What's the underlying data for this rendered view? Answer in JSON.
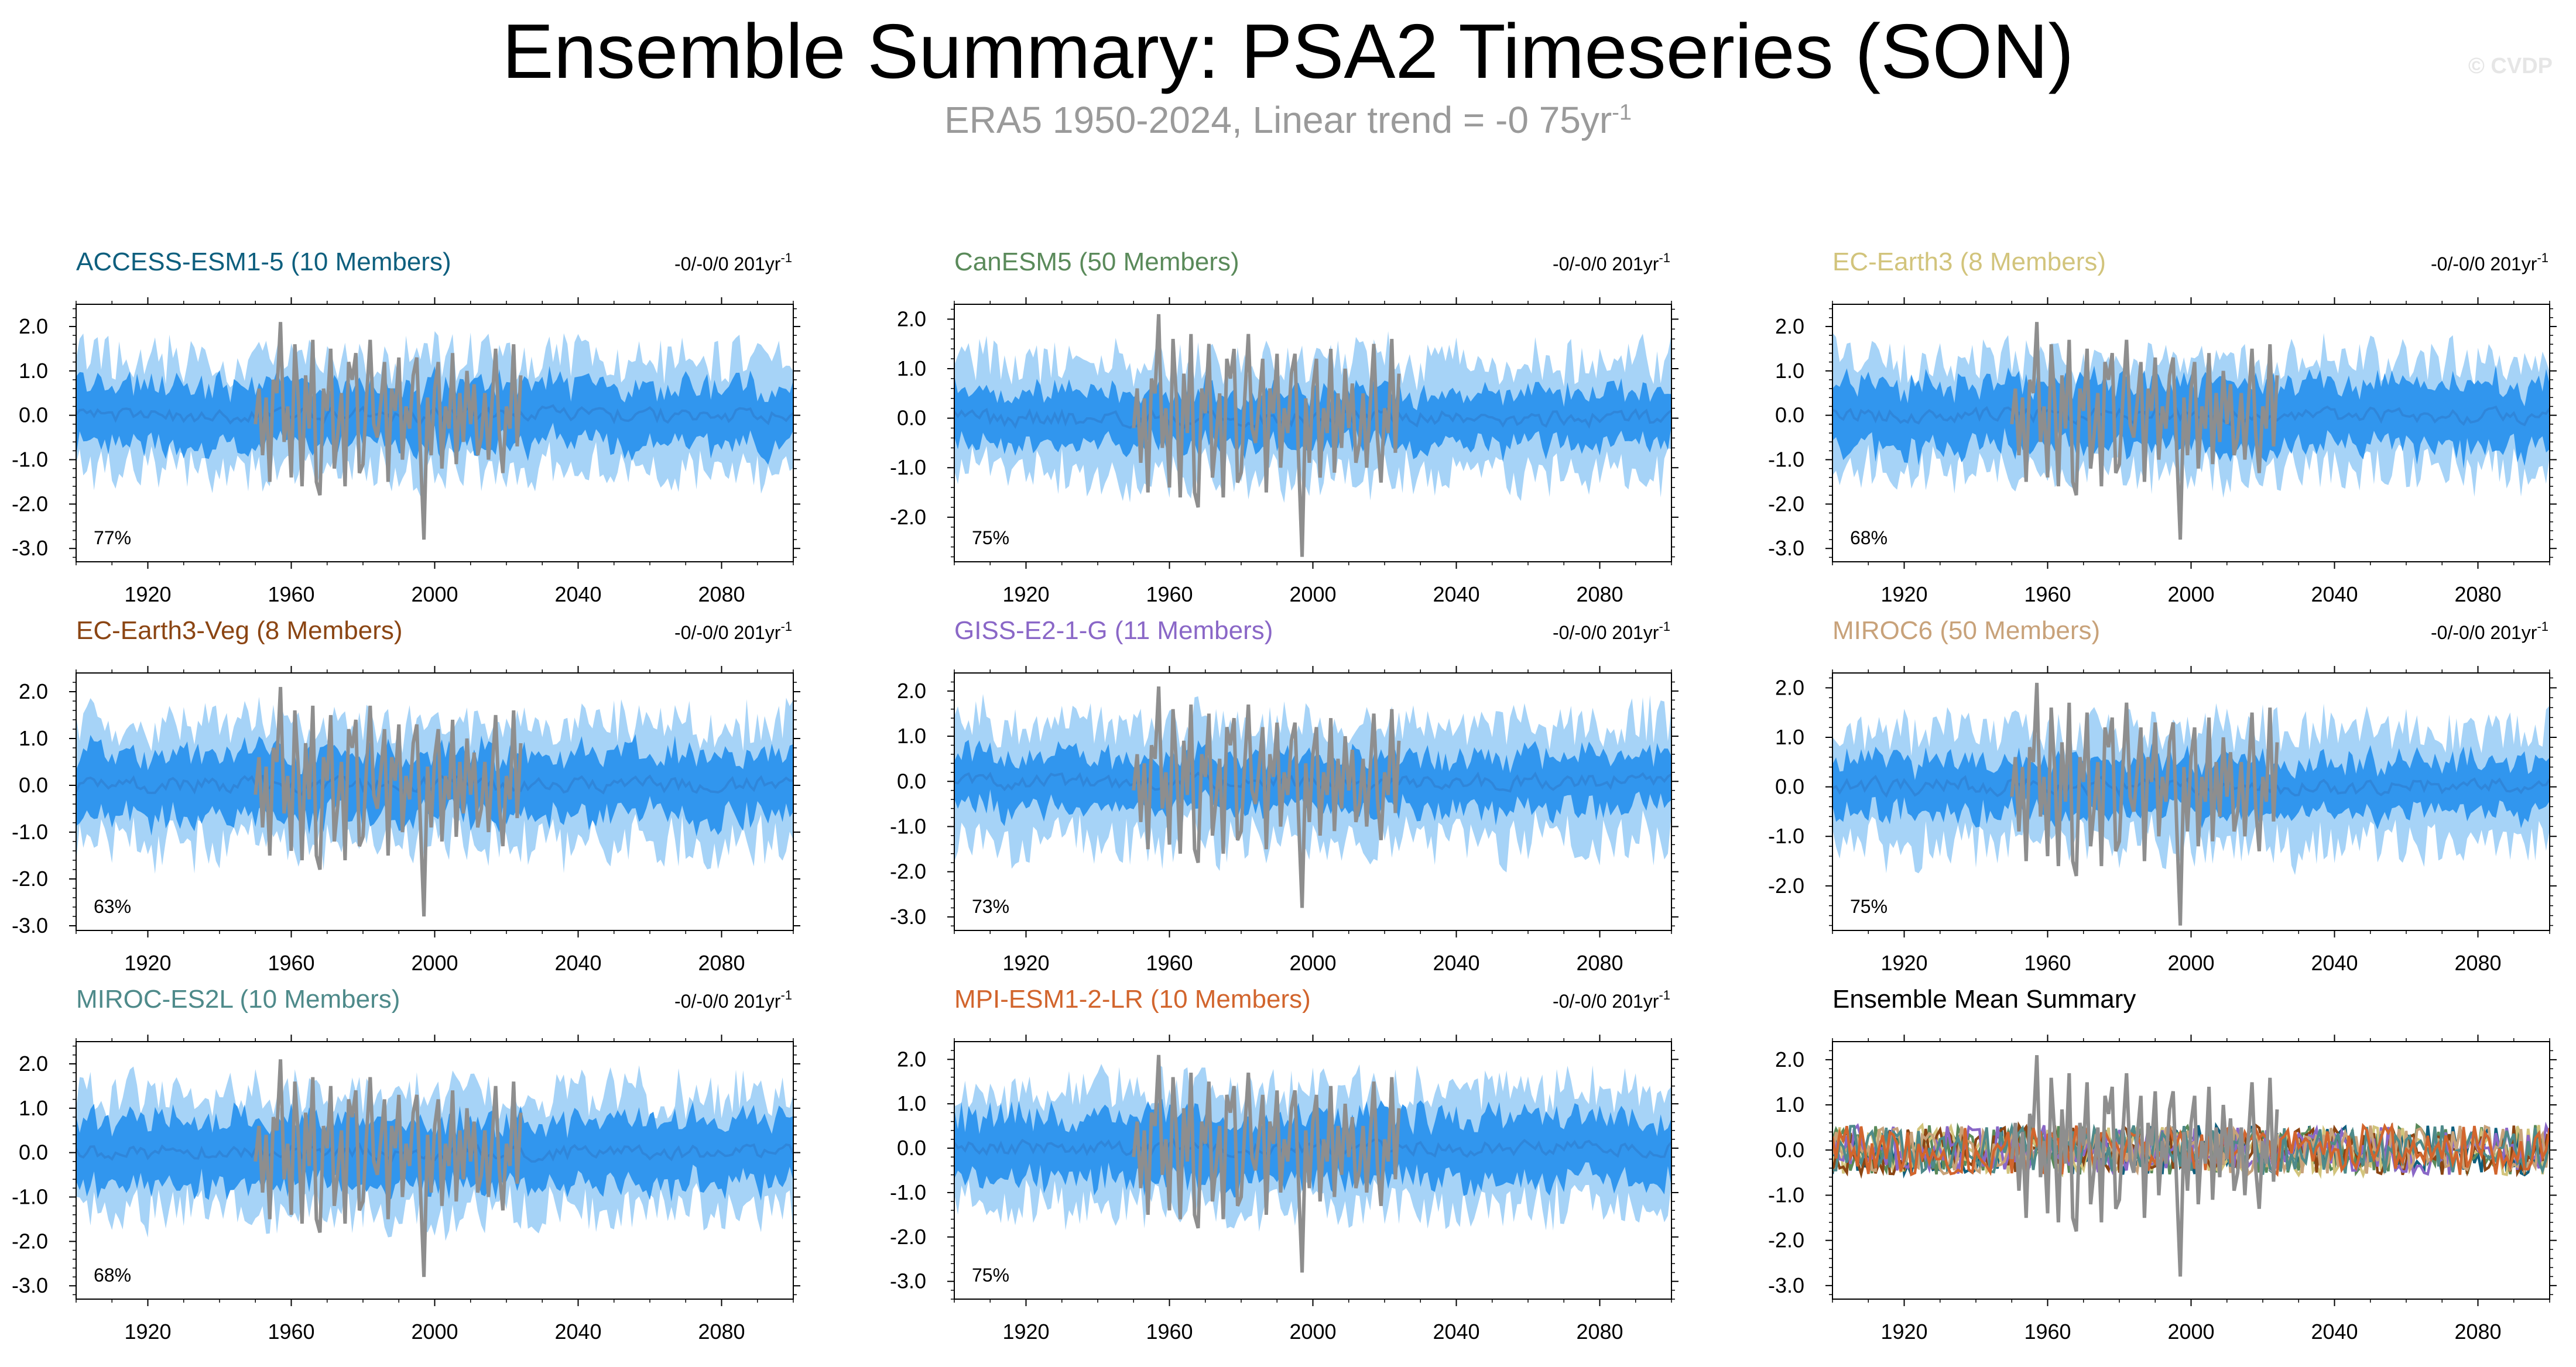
{
  "figure": {
    "title": "Ensemble Summary: PSA2 Timeseries (SON)",
    "subtitle_prefix": "ERA5 1950-2024, Linear trend = -0 75yr",
    "subtitle_sup": "-1",
    "watermark": "© CVDP"
  },
  "colors": {
    "outer_band": "#a6d3f7",
    "inner_band": "#3196ee",
    "mean_line": "#2f86da",
    "observations": "#8e8e8e"
  },
  "chart_data": [
    {
      "type": "area",
      "title": "ACCESS-ESM1-5 (10 Members)",
      "title_color": "#0e5f7e",
      "trend_label": "-0/-0/0 201yr",
      "trend_sup": "-1",
      "percent_label": "77%",
      "ylim": [
        -3.3,
        2.5
      ],
      "yticks": [
        2.0,
        1.0,
        0.0,
        -1.0,
        -2.0,
        -3.0
      ],
      "ytick_labels": [
        "2.0",
        "1.0",
        "0.0",
        "-1.0",
        "-2.0",
        "-3.0"
      ],
      "xlim": [
        1900,
        2100
      ],
      "xticks": [
        1920,
        1960,
        2000,
        2040,
        2080
      ],
      "xtick_labels": [
        "1920",
        "1960",
        "2000",
        "2040",
        "2080"
      ],
      "outer_amp": 1.35,
      "inner_amp": 0.7,
      "seed": 11
    },
    {
      "type": "area",
      "title": "CanESM5 (50 Members)",
      "title_color": "#5a8a5a",
      "trend_label": "-0/-0/0 201yr",
      "trend_sup": "-1",
      "percent_label": "75%",
      "ylim": [
        -2.9,
        2.3
      ],
      "yticks": [
        2.0,
        1.0,
        0.0,
        -1.0,
        -2.0
      ],
      "ytick_labels": [
        "2.0",
        "1.0",
        "0.0",
        "-1.0",
        "-2.0"
      ],
      "xlim": [
        1900,
        2100
      ],
      "xticks": [
        1920,
        1960,
        2000,
        2040,
        2080
      ],
      "xtick_labels": [
        "1920",
        "1960",
        "2000",
        "2040",
        "2080"
      ],
      "outer_amp": 1.25,
      "inner_amp": 0.55,
      "seed": 23
    },
    {
      "type": "area",
      "title": "EC-Earth3 (8 Members)",
      "title_color": "#d2c47c",
      "trend_label": "-0/-0/0 201yr",
      "trend_sup": "-1",
      "percent_label": "68%",
      "ylim": [
        -3.3,
        2.5
      ],
      "yticks": [
        2.0,
        1.0,
        0.0,
        -1.0,
        -2.0,
        -3.0
      ],
      "ytick_labels": [
        "2.0",
        "1.0",
        "0.0",
        "-1.0",
        "-2.0",
        "-3.0"
      ],
      "xlim": [
        1900,
        2100
      ],
      "xticks": [
        1920,
        1960,
        2000,
        2040,
        2080
      ],
      "xtick_labels": [
        "1920",
        "1960",
        "2000",
        "2040",
        "2080"
      ],
      "outer_amp": 1.35,
      "inner_amp": 0.75,
      "seed": 37
    },
    {
      "type": "area",
      "title": "EC-Earth3-Veg (8 Members)",
      "title_color": "#8b4513",
      "trend_label": "-0/-0/0 201yr",
      "trend_sup": "-1",
      "percent_label": "63%",
      "ylim": [
        -3.1,
        2.4
      ],
      "yticks": [
        2.0,
        1.0,
        0.0,
        -1.0,
        -2.0,
        -3.0
      ],
      "ytick_labels": [
        "2.0",
        "1.0",
        "0.0",
        "-1.0",
        "-2.0",
        "-3.0"
      ],
      "xlim": [
        1900,
        2100
      ],
      "xticks": [
        1920,
        1960,
        2000,
        2040,
        2080
      ],
      "xtick_labels": [
        "1920",
        "1960",
        "2000",
        "2040",
        "2080"
      ],
      "outer_amp": 1.35,
      "inner_amp": 0.7,
      "seed": 41
    },
    {
      "type": "area",
      "title": "GISS-E2-1-G (11 Members)",
      "title_color": "#8a67c7",
      "trend_label": "-0/-0/0 201yr",
      "trend_sup": "-1",
      "percent_label": "73%",
      "ylim": [
        -3.3,
        2.4
      ],
      "yticks": [
        2.0,
        1.0,
        0.0,
        -1.0,
        -2.0,
        -3.0
      ],
      "ytick_labels": [
        "2.0",
        "1.0",
        "0.0",
        "-1.0",
        "-2.0",
        "-3.0"
      ],
      "xlim": [
        1900,
        2100
      ],
      "xticks": [
        1920,
        1960,
        2000,
        2040,
        2080
      ],
      "xtick_labels": [
        "1920",
        "1960",
        "2000",
        "2040",
        "2080"
      ],
      "outer_amp": 1.4,
      "inner_amp": 0.6,
      "seed": 53
    },
    {
      "type": "area",
      "title": "MIROC6 (50 Members)",
      "title_color": "#c8a27a",
      "trend_label": "-0/-0/0 201yr",
      "trend_sup": "-1",
      "percent_label": "75%",
      "ylim": [
        -2.9,
        2.3
      ],
      "yticks": [
        2.0,
        1.0,
        0.0,
        -1.0,
        -2.0
      ],
      "ytick_labels": [
        "2.0",
        "1.0",
        "0.0",
        "-1.0",
        "-2.0"
      ],
      "xlim": [
        1900,
        2100
      ],
      "xticks": [
        1920,
        1960,
        2000,
        2040,
        2080
      ],
      "xtick_labels": [
        "1920",
        "1960",
        "2000",
        "2040",
        "2080"
      ],
      "outer_amp": 1.25,
      "inner_amp": 0.55,
      "seed": 67
    },
    {
      "type": "area",
      "title": "MIROC-ES2L (10 Members)",
      "title_color": "#4e8a8a",
      "trend_label": "-0/-0/0 201yr",
      "trend_sup": "-1",
      "percent_label": "68%",
      "ylim": [
        -3.3,
        2.5
      ],
      "yticks": [
        2.0,
        1.0,
        0.0,
        -1.0,
        -2.0,
        -3.0
      ],
      "ytick_labels": [
        "2.0",
        "1.0",
        "0.0",
        "-1.0",
        "-2.0",
        "-3.0"
      ],
      "xlim": [
        1900,
        2100
      ],
      "xticks": [
        1920,
        1960,
        2000,
        2040,
        2080
      ],
      "xtick_labels": [
        "1920",
        "1960",
        "2000",
        "2040",
        "2080"
      ],
      "outer_amp": 1.4,
      "inner_amp": 0.75,
      "seed": 79
    },
    {
      "type": "area",
      "title": "MPI-ESM1-2-LR (10 Members)",
      "title_color": "#d2652d",
      "trend_label": "-0/-0/0 201yr",
      "trend_sup": "-1",
      "percent_label": "75%",
      "ylim": [
        -3.4,
        2.4
      ],
      "yticks": [
        2.0,
        1.0,
        0.0,
        -1.0,
        -2.0,
        -3.0
      ],
      "ytick_labels": [
        "2.0",
        "1.0",
        "0.0",
        "-1.0",
        "-2.0",
        "-3.0"
      ],
      "xlim": [
        1900,
        2100
      ],
      "xticks": [
        1920,
        1960,
        2000,
        2040,
        2080
      ],
      "xtick_labels": [
        "1920",
        "1960",
        "2000",
        "2040",
        "2080"
      ],
      "outer_amp": 1.4,
      "inner_amp": 0.75,
      "seed": 83
    },
    {
      "type": "line",
      "title": "Ensemble Mean Summary",
      "title_color": "#000000",
      "ylim": [
        -3.3,
        2.4
      ],
      "yticks": [
        2.0,
        1.0,
        0.0,
        -1.0,
        -2.0,
        -3.0
      ],
      "ytick_labels": [
        "2.0",
        "1.0",
        "0.0",
        "-1.0",
        "-2.0",
        "-3.0"
      ],
      "xlim": [
        1900,
        2100
      ],
      "xticks": [
        1920,
        1960,
        2000,
        2040,
        2080
      ],
      "xtick_labels": [
        "1920",
        "1960",
        "2000",
        "2040",
        "2080"
      ],
      "series_colors": [
        "#0e5f7e",
        "#5a8a5a",
        "#d2c47c",
        "#8b4513",
        "#8a67c7",
        "#c8a27a",
        "#4e8a8a",
        "#d2652d"
      ]
    }
  ],
  "observations": {
    "name": "ERA5",
    "years": [
      1950,
      1951,
      1952,
      1953,
      1954,
      1955,
      1956,
      1957,
      1958,
      1959,
      1960,
      1961,
      1962,
      1963,
      1964,
      1965,
      1966,
      1967,
      1968,
      1969,
      1970,
      1971,
      1972,
      1973,
      1974,
      1975,
      1976,
      1977,
      1978,
      1979,
      1980,
      1981,
      1982,
      1983,
      1984,
      1985,
      1986,
      1987,
      1988,
      1989,
      1990,
      1991,
      1992,
      1993,
      1994,
      1995,
      1996,
      1997,
      1998,
      1999,
      2000,
      2001,
      2002,
      2003,
      2004,
      2005,
      2006,
      2007,
      2008,
      2009,
      2010,
      2011,
      2012,
      2013,
      2014,
      2015,
      2016,
      2017,
      2018,
      2019,
      2020,
      2021,
      2022,
      2023,
      2024
    ],
    "values": [
      -0.2,
      0.6,
      -0.9,
      0.4,
      -1.5,
      0.8,
      0.5,
      2.1,
      -0.6,
      0.2,
      -1.4,
      1.6,
      0.3,
      -1.6,
      0.9,
      -0.3,
      1.7,
      -1.5,
      -1.8,
      0.6,
      0.1,
      1.5,
      -1.2,
      -0.4,
      0.5,
      -1.6,
      1.2,
      0.8,
      1.4,
      -1.3,
      -1.1,
      0.4,
      1.7,
      -0.2,
      -0.5,
      0.3,
      1.2,
      -1.5,
      0.6,
      0.1,
      1.3,
      -1.0,
      0.2,
      -0.3,
      0.9,
      1.3,
      -0.8,
      -2.8,
      0.4,
      -0.9,
      0.6,
      1.2,
      -1.2,
      0.2,
      -0.3,
      1.4,
      -1.1,
      0.5,
      -0.6,
      1.0,
      -0.2,
      0.7,
      -0.9,
      -0.5,
      0.5,
      -1.0,
      0.3,
      1.5,
      -0.4,
      -1.3,
      0.2,
      -0.3,
      1.6,
      -0.7,
      0.9
    ]
  }
}
